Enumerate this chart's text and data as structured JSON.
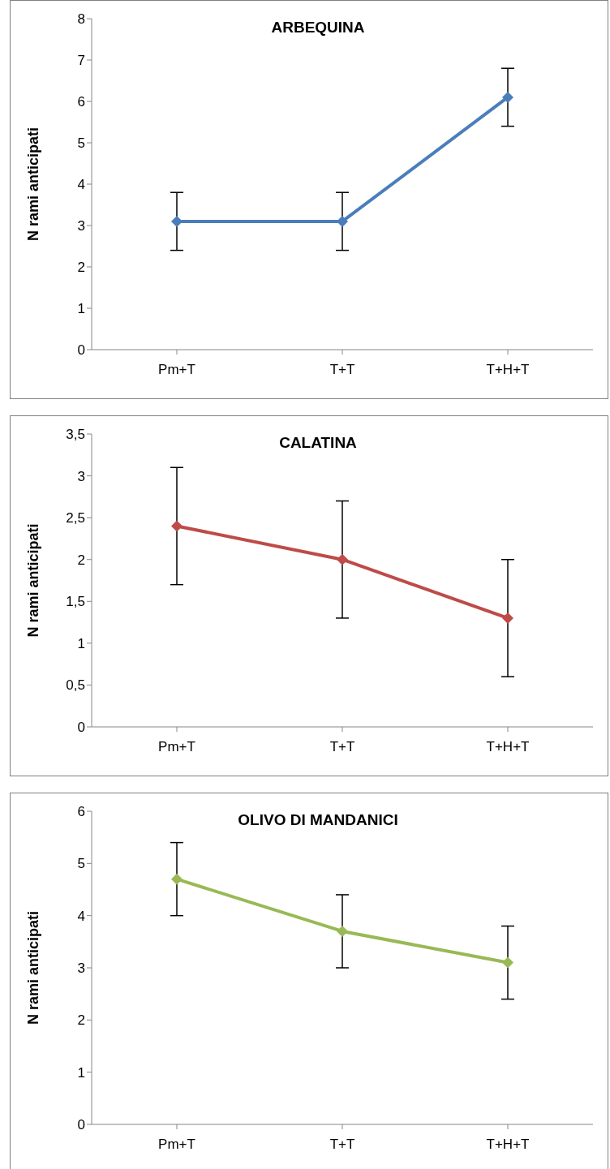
{
  "chart_data": [
    {
      "type": "line",
      "title": "ARBEQUINA",
      "ylabel": "N rami anticipati",
      "categories": [
        "Pm+T",
        "T+T",
        "T+H+T"
      ],
      "series": [
        {
          "color": "#4a7ebb",
          "values": [
            3.1,
            3.1,
            6.1
          ],
          "errors": [
            0.7,
            0.7,
            0.7
          ]
        }
      ],
      "ylim": [
        0,
        8
      ],
      "yticks": [
        0,
        1,
        2,
        3,
        4,
        5,
        6,
        7,
        8
      ],
      "grid": false,
      "legend": false,
      "marker": "diamond"
    },
    {
      "type": "line",
      "title": "CALATINA",
      "ylabel": "N rami anticipati",
      "categories": [
        "Pm+T",
        "T+T",
        "T+H+T"
      ],
      "series": [
        {
          "color": "#be4b48",
          "values": [
            2.4,
            2.0,
            1.3
          ],
          "errors": [
            0.7,
            0.7,
            0.7
          ]
        }
      ],
      "ylim": [
        0,
        3.5
      ],
      "yticks": [
        0,
        {
          "value": 0.5,
          "label": "0,5"
        },
        1,
        {
          "value": 1.5,
          "label": "1,5"
        },
        2,
        {
          "value": 2.5,
          "label": "2,5"
        },
        3,
        {
          "value": 3.5,
          "label": "3,5"
        }
      ],
      "grid": false,
      "legend": false,
      "marker": "diamond"
    },
    {
      "type": "line",
      "title": "OLIVO DI MANDANICI",
      "ylabel": "N rami anticipati",
      "categories": [
        "Pm+T",
        "T+T",
        "T+H+T"
      ],
      "series": [
        {
          "color": "#98b954",
          "values": [
            4.7,
            3.7,
            3.1
          ],
          "errors": [
            0.7,
            0.7,
            0.7
          ]
        }
      ],
      "ylim": [
        0,
        6
      ],
      "yticks": [
        0,
        1,
        2,
        3,
        4,
        5,
        6
      ],
      "grid": false,
      "legend": false,
      "marker": "diamond"
    }
  ]
}
